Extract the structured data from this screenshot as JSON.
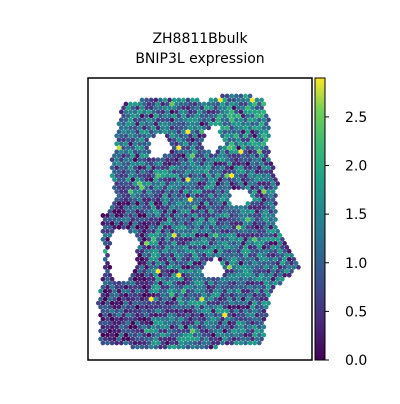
{
  "chart_data": {
    "type": "scatter",
    "title_line1": "ZH8811Bbulk",
    "title_line2": "BNIP3L expression",
    "xlabel": "",
    "ylabel": "",
    "colorbar": {
      "min": 0.0,
      "max": 2.9,
      "ticks": [
        0.0,
        0.5,
        1.0,
        1.5,
        2.0,
        2.5
      ],
      "tick_labels": [
        "0.0",
        "0.5",
        "1.0",
        "1.5",
        "2.0",
        "2.5"
      ],
      "colormap": "viridis"
    },
    "colors": [
      "#440154",
      "#3b528b",
      "#21918c",
      "#5ec962",
      "#fde725"
    ]
  }
}
